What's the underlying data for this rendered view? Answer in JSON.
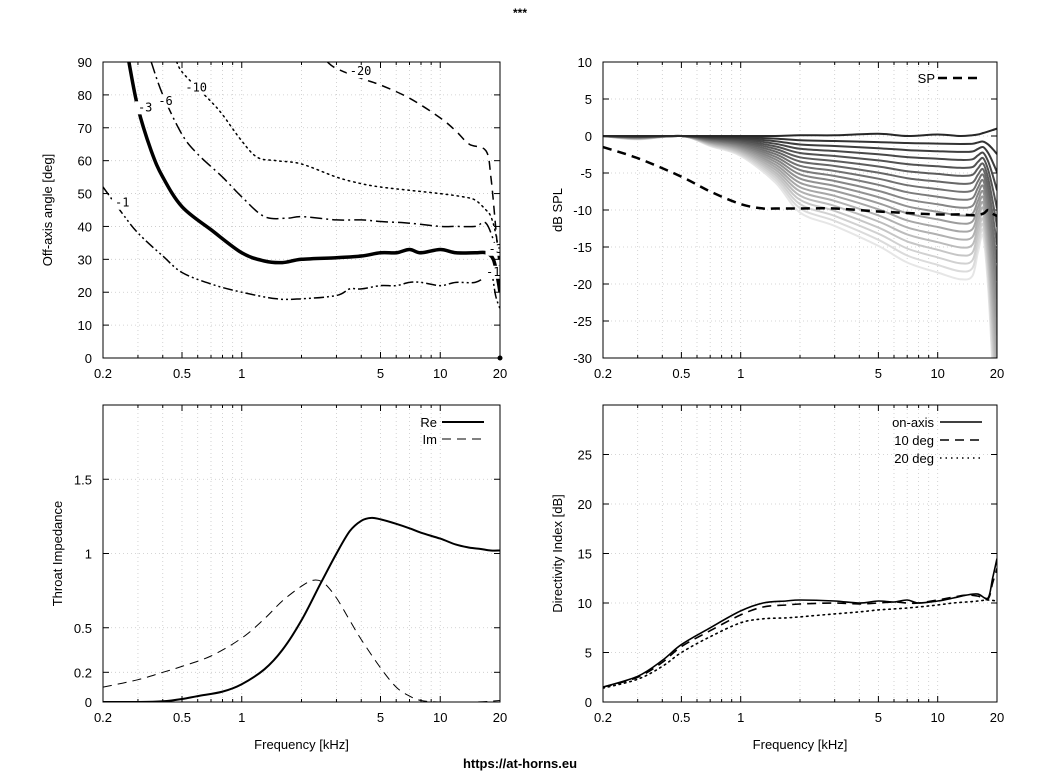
{
  "title": "***",
  "footer": "https://at-horns.eu",
  "x_tick_labels": [
    "0.2",
    "0.5",
    "1",
    "5",
    "10",
    "20"
  ],
  "x_tick_values": [
    0.2,
    0.5,
    1,
    5,
    10,
    20
  ],
  "chart_data": [
    {
      "id": "contour",
      "type": "line",
      "title": "",
      "xlabel": "",
      "ylabel": "Off-axis angle [deg]",
      "xscale": "log",
      "xlim": [
        0.2,
        20
      ],
      "ylim": [
        0,
        90
      ],
      "yticks": [
        0,
        10,
        20,
        30,
        40,
        50,
        60,
        70,
        80,
        90
      ],
      "grid": true,
      "series": [
        {
          "name": "-1",
          "style": "dashdotdot",
          "width": 1.5,
          "x": [
            0.2,
            0.25,
            0.3,
            0.4,
            0.5,
            0.7,
            1.0,
            1.5,
            2.0,
            3.0,
            3.5,
            4.0,
            5.0,
            6.0,
            7.0,
            8.0,
            10.0,
            12.0,
            15.0,
            17.0,
            18.0,
            19.0,
            20.0
          ],
          "y": [
            52,
            44,
            38,
            31,
            26,
            22.5,
            20,
            18,
            18,
            19,
            21,
            21,
            22,
            22,
            23,
            23,
            22,
            23,
            23,
            25,
            27,
            19,
            15
          ]
        },
        {
          "name": "-3",
          "style": "solid",
          "width": 3.5,
          "x": [
            0.27,
            0.3,
            0.35,
            0.4,
            0.5,
            0.7,
            1.0,
            1.3,
            1.6,
            2.0,
            3.0,
            4.0,
            5.0,
            6.0,
            7.0,
            8.0,
            10.0,
            12.0,
            15.0,
            17.0,
            18.5,
            19.5,
            20.0
          ],
          "y": [
            90,
            76,
            63,
            55,
            46,
            39,
            32,
            29.5,
            29,
            30,
            30.5,
            31,
            32,
            32,
            33,
            32,
            33,
            32,
            32,
            32,
            30,
            24,
            20
          ]
        },
        {
          "name": "-6",
          "style": "dashdot",
          "width": 1.5,
          "x": [
            0.35,
            0.4,
            0.5,
            0.6,
            0.8,
            1.0,
            1.3,
            1.7,
            2.0,
            3.0,
            4.0,
            5.0,
            7.0,
            10.0,
            12.0,
            15.0,
            17.0,
            19.0,
            20.0
          ],
          "y": [
            90,
            80,
            68,
            62,
            55,
            49,
            43,
            42.5,
            43,
            42,
            42,
            41.5,
            41,
            40,
            40,
            40,
            41,
            34,
            30
          ]
        },
        {
          "name": "-10",
          "style": "dotted",
          "width": 1.5,
          "x": [
            0.47,
            0.5,
            0.6,
            0.7,
            0.8,
            1.0,
            1.2,
            1.5,
            2.0,
            3.0,
            4.0,
            5.0,
            7.0,
            10.0,
            13.0,
            15.0,
            17.0,
            18.0,
            19.0,
            20.0
          ],
          "y": [
            90,
            87,
            82,
            78,
            74,
            66,
            61,
            60,
            59,
            55,
            53,
            52,
            51,
            50,
            49,
            48,
            45,
            43,
            38,
            30
          ]
        },
        {
          "name": "-20",
          "style": "dashed",
          "width": 1.5,
          "x": [
            2.7,
            3.0,
            4.0,
            5.0,
            7.0,
            10.0,
            12.0,
            14.0,
            17.0,
            18.0,
            19.0,
            20.0
          ],
          "y": [
            90,
            88,
            85,
            83,
            79,
            73,
            69,
            65,
            63,
            55,
            40,
            25
          ]
        }
      ],
      "labels": [
        {
          "text": "-1",
          "x": 0.23,
          "y": 46
        },
        {
          "text": "-3",
          "x": 0.3,
          "y": 75
        },
        {
          "text": "-6",
          "x": 0.38,
          "y": 77
        },
        {
          "text": "-10",
          "x": 0.52,
          "y": 81
        },
        {
          "text": "-20",
          "x": 3.5,
          "y": 86
        },
        {
          "text": "-3",
          "x": 17.5,
          "y": 32
        },
        {
          "text": "-1",
          "x": 17.0,
          "y": 25
        }
      ]
    },
    {
      "id": "polar",
      "type": "line",
      "title": "",
      "xlabel": "",
      "ylabel": "dB SPL",
      "xscale": "log",
      "xlim": [
        0.2,
        20
      ],
      "ylim": [
        -30,
        10
      ],
      "yticks": [
        -30,
        -25,
        -20,
        -15,
        -10,
        -5,
        0,
        5,
        10
      ],
      "grid": true,
      "family": {
        "count": 19,
        "x": [
          0.2,
          0.3,
          0.5,
          0.7,
          1.0,
          1.5,
          2.0,
          3.0,
          5.0,
          7.0,
          10.0,
          13.0,
          15.0,
          16.0,
          17.0,
          18.0,
          19.0,
          20.0
        ],
        "attenuation_fraction": [
          0.0,
          0.01,
          0.0,
          0.03,
          0.06,
          0.14,
          0.23,
          0.27,
          0.33,
          0.38,
          0.41,
          0.43,
          0.42,
          0.35,
          0.3,
          0.45,
          0.7,
          0.98
        ]
      },
      "series": [
        {
          "name": "SP",
          "style": "dashed",
          "width": 2.5,
          "x": [
            0.2,
            0.3,
            0.5,
            0.7,
            1.0,
            1.3,
            1.5,
            2.0,
            3.0,
            5.0,
            7.0,
            10.0,
            13.0,
            15.0,
            17.0,
            18.0,
            19.0,
            20.0
          ],
          "y": [
            -1.5,
            -3.0,
            -5.5,
            -7.5,
            -9.2,
            -9.8,
            -9.8,
            -9.8,
            -9.8,
            -10.2,
            -10.4,
            -10.6,
            -10.6,
            -10.7,
            -10.5,
            -10.0,
            -10.5,
            -10.8
          ]
        }
      ],
      "legend": [
        "SP"
      ]
    },
    {
      "id": "impedance",
      "type": "line",
      "title": "",
      "xlabel": "Frequency [kHz]",
      "ylabel": "Throat Impedance",
      "xscale": "log",
      "xlim": [
        0.2,
        20
      ],
      "ylim": [
        0,
        2.0
      ],
      "yticks": [
        0,
        0.2,
        0.5,
        1,
        1.5
      ],
      "ytick_labels": [
        "0",
        "0.2",
        "0.5",
        "1",
        "1.5"
      ],
      "grid": true,
      "series": [
        {
          "name": "Re",
          "style": "solid",
          "width": 2,
          "x": [
            0.2,
            0.3,
            0.4,
            0.5,
            0.6,
            0.8,
            1.0,
            1.3,
            1.6,
            2.0,
            2.5,
            3.0,
            3.5,
            4.0,
            4.5,
            5.0,
            6.0,
            7.0,
            8.0,
            10.0,
            12.0,
            14.0,
            16.0,
            18.0,
            20.0
          ],
          "y": [
            0.0,
            0.0,
            0.005,
            0.02,
            0.04,
            0.07,
            0.12,
            0.22,
            0.35,
            0.55,
            0.8,
            1.0,
            1.15,
            1.22,
            1.24,
            1.23,
            1.2,
            1.17,
            1.14,
            1.1,
            1.06,
            1.04,
            1.03,
            1.02,
            1.02
          ]
        },
        {
          "name": "Im",
          "style": "dashed",
          "width": 1,
          "x": [
            0.2,
            0.3,
            0.4,
            0.5,
            0.7,
            1.0,
            1.3,
            1.6,
            2.0,
            2.3,
            2.6,
            3.0,
            3.5,
            4.0,
            5.0,
            6.0,
            7.0,
            8.0,
            10.0,
            15.0,
            20.0
          ],
          "y": [
            0.1,
            0.15,
            0.2,
            0.24,
            0.31,
            0.43,
            0.56,
            0.68,
            0.78,
            0.82,
            0.8,
            0.7,
            0.55,
            0.42,
            0.23,
            0.1,
            0.04,
            0.01,
            0.0,
            0.0,
            0.01
          ]
        }
      ],
      "legend": [
        "Re",
        "Im"
      ]
    },
    {
      "id": "di",
      "type": "line",
      "title": "",
      "xlabel": "Frequency [kHz]",
      "ylabel": "Directivity Index [dB]",
      "xscale": "log",
      "xlim": [
        0.2,
        20
      ],
      "ylim": [
        0,
        30
      ],
      "yticks": [
        0,
        5,
        10,
        15,
        20,
        25
      ],
      "grid": true,
      "series": [
        {
          "name": "on-axis",
          "style": "solid",
          "width": 1.6,
          "x": [
            0.2,
            0.3,
            0.4,
            0.5,
            0.7,
            1.0,
            1.3,
            1.7,
            2.0,
            3.0,
            4.0,
            5.0,
            6.0,
            7.0,
            8.0,
            10.0,
            12.0,
            14.0,
            16.0,
            18.0,
            19.0,
            20.0
          ],
          "y": [
            1.5,
            2.6,
            4.2,
            5.8,
            7.5,
            9.2,
            10.0,
            10.2,
            10.3,
            10.2,
            10.0,
            10.2,
            10.1,
            10.3,
            10.0,
            10.2,
            10.5,
            10.8,
            10.9,
            10.5,
            12.5,
            14.5
          ]
        },
        {
          "name": "10 deg",
          "style": "dashed",
          "width": 1.6,
          "x": [
            0.2,
            0.3,
            0.4,
            0.5,
            0.7,
            1.0,
            1.3,
            1.7,
            2.0,
            3.0,
            4.0,
            5.0,
            6.0,
            7.0,
            8.0,
            10.0,
            12.0,
            14.0,
            16.0,
            18.0,
            19.0,
            20.0
          ],
          "y": [
            1.5,
            2.5,
            4.0,
            5.6,
            7.2,
            8.8,
            9.6,
            9.8,
            9.9,
            10.0,
            9.9,
            10.0,
            10.1,
            10.0,
            10.0,
            10.3,
            10.6,
            10.8,
            10.7,
            10.4,
            12.0,
            13.5
          ]
        },
        {
          "name": "20 deg",
          "style": "dotted",
          "width": 1.6,
          "x": [
            0.2,
            0.3,
            0.4,
            0.5,
            0.7,
            1.0,
            1.3,
            1.7,
            2.0,
            3.0,
            4.0,
            5.0,
            6.0,
            7.0,
            8.0,
            10.0,
            12.0,
            14.0,
            16.0,
            18.0,
            20.0
          ],
          "y": [
            1.4,
            2.3,
            3.6,
            5.0,
            6.6,
            8.0,
            8.4,
            8.5,
            8.6,
            8.9,
            9.1,
            9.3,
            9.4,
            9.5,
            9.6,
            9.8,
            10.0,
            10.1,
            10.2,
            10.3,
            10.2
          ]
        }
      ],
      "legend": [
        "on-axis",
        "10 deg",
        "20 deg"
      ]
    }
  ]
}
